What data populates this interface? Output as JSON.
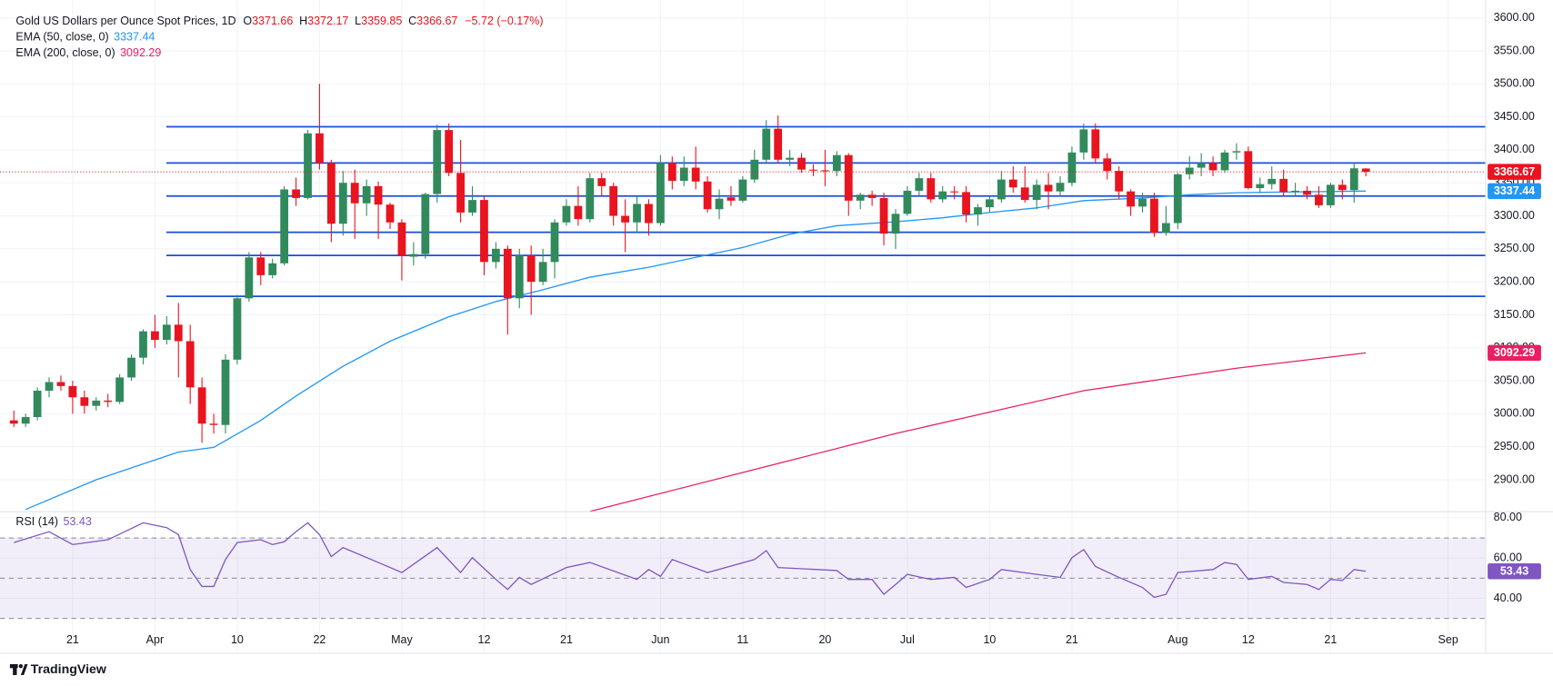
{
  "chart_data": [
    {
      "type": "candlestick",
      "title": "Gold US Dollars per Ounce Spot Prices, 1D",
      "ohlc_labels": [
        "O",
        "H",
        "L",
        "C"
      ],
      "change_text": "−5.72 (−0.17%)",
      "up_color": "#318a5c",
      "down_color": "#e8141f",
      "open": [
        2990,
        2985,
        2995,
        3035,
        3048,
        3042,
        3025,
        3012,
        3020,
        3018,
        3055,
        3085,
        3125,
        3112,
        3135,
        3110,
        3040,
        2985,
        2983,
        3082,
        3175,
        3237,
        3210,
        3228,
        3340,
        3327,
        3425,
        3380,
        3288,
        3350,
        3319,
        3345,
        3317,
        3290,
        3238,
        3242,
        3333,
        3430,
        3365,
        3305,
        3324,
        3230,
        3250,
        3175,
        3240,
        3200,
        3230,
        3290,
        3315,
        3295,
        3357,
        3345,
        3300,
        3290,
        3318,
        3289,
        3380,
        3353,
        3373,
        3352,
        3310,
        3328,
        3323,
        3355,
        3385,
        3432,
        3385,
        3388,
        3370,
        3369,
        3368,
        3392,
        3323,
        3332,
        3327,
        3273,
        3303,
        3338,
        3357,
        3325,
        3337,
        3336,
        3302,
        3313,
        3325,
        3355,
        3343,
        3324,
        3347,
        3337,
        3350,
        3396,
        3431,
        3387,
        3368,
        3337,
        3314,
        3326,
        3274,
        3289,
        3363,
        3373,
        3380,
        3369,
        3396,
        3398,
        3342,
        3348,
        3356,
        3336,
        3338,
        3332,
        3316,
        3347,
        3339,
        3371.66
      ],
      "high": [
        3005,
        3000,
        3040,
        3055,
        3058,
        3050,
        3035,
        3025,
        3030,
        3060,
        3090,
        3128,
        3150,
        3148,
        3168,
        3135,
        3055,
        3000,
        3090,
        3180,
        3245,
        3245,
        3235,
        3345,
        3358,
        3430,
        3500,
        3385,
        3368,
        3370,
        3355,
        3352,
        3320,
        3295,
        3260,
        3335,
        3438,
        3440,
        3415,
        3345,
        3330,
        3260,
        3255,
        3250,
        3255,
        3250,
        3295,
        3325,
        3345,
        3365,
        3365,
        3350,
        3325,
        3330,
        3325,
        3392,
        3390,
        3390,
        3405,
        3360,
        3340,
        3345,
        3360,
        3400,
        3445,
        3452,
        3400,
        3395,
        3378,
        3400,
        3398,
        3395,
        3335,
        3338,
        3335,
        3310,
        3345,
        3365,
        3365,
        3345,
        3345,
        3345,
        3318,
        3330,
        3368,
        3375,
        3375,
        3355,
        3365,
        3360,
        3405,
        3440,
        3440,
        3395,
        3375,
        3340,
        3335,
        3335,
        3315,
        3365,
        3390,
        3395,
        3390,
        3400,
        3410,
        3405,
        3358,
        3375,
        3370,
        3350,
        3345,
        3345,
        3350,
        3355,
        3380,
        3372.17
      ],
      "low": [
        2980,
        2980,
        2990,
        3025,
        3035,
        3000,
        3000,
        3005,
        3010,
        3015,
        3050,
        3075,
        3100,
        3105,
        3055,
        3015,
        2956,
        2970,
        2970,
        3075,
        3170,
        3195,
        3205,
        3225,
        3315,
        3325,
        3370,
        3260,
        3270,
        3265,
        3300,
        3265,
        3280,
        3202,
        3225,
        3235,
        3320,
        3360,
        3290,
        3300,
        3210,
        3220,
        3120,
        3160,
        3150,
        3195,
        3205,
        3285,
        3285,
        3290,
        3330,
        3285,
        3245,
        3275,
        3270,
        3285,
        3340,
        3345,
        3340,
        3305,
        3295,
        3315,
        3320,
        3350,
        3380,
        3380,
        3375,
        3365,
        3360,
        3345,
        3360,
        3300,
        3310,
        3315,
        3255,
        3250,
        3300,
        3330,
        3320,
        3320,
        3325,
        3290,
        3285,
        3305,
        3320,
        3335,
        3320,
        3310,
        3310,
        3330,
        3345,
        3385,
        3380,
        3355,
        3325,
        3300,
        3305,
        3268,
        3270,
        3280,
        3355,
        3360,
        3360,
        3365,
        3385,
        3340,
        3335,
        3340,
        3330,
        3330,
        3325,
        3312,
        3312,
        3325,
        3320,
        3359.85
      ],
      "close": [
        2985,
        2995,
        3035,
        3048,
        3042,
        3025,
        3012,
        3020,
        3018,
        3055,
        3085,
        3125,
        3112,
        3135,
        3110,
        3040,
        2985,
        2983,
        3082,
        3175,
        3237,
        3210,
        3228,
        3340,
        3327,
        3425,
        3380,
        3288,
        3350,
        3319,
        3345,
        3317,
        3290,
        3240,
        3242,
        3333,
        3430,
        3365,
        3305,
        3324,
        3230,
        3250,
        3175,
        3240,
        3200,
        3230,
        3290,
        3315,
        3295,
        3357,
        3345,
        3300,
        3290,
        3318,
        3289,
        3380,
        3353,
        3373,
        3352,
        3310,
        3326,
        3323,
        3355,
        3385,
        3432,
        3385,
        3388,
        3370,
        3369,
        3368,
        3392,
        3323,
        3332,
        3327,
        3273,
        3303,
        3338,
        3357,
        3325,
        3337,
        3336,
        3302,
        3313,
        3325,
        3355,
        3343,
        3324,
        3347,
        3337,
        3350,
        3396,
        3431,
        3387,
        3368,
        3337,
        3314,
        3326,
        3274,
        3289,
        3363,
        3373,
        3380,
        3369,
        3396,
        3398,
        3342,
        3348,
        3356,
        3336,
        3338,
        3332,
        3316,
        3347,
        3339,
        3372,
        3366.67
      ],
      "xlim": [
        -1.18,
        125.19
      ],
      "xticks": [
        {
          "value": 5,
          "label": "21"
        },
        {
          "value": 12,
          "label": "Apr"
        },
        {
          "value": 19,
          "label": "10"
        },
        {
          "value": 26,
          "label": "22"
        },
        {
          "value": 33,
          "label": "May"
        },
        {
          "value": 40,
          "label": "12"
        },
        {
          "value": 47,
          "label": "21"
        },
        {
          "value": 55,
          "label": "Jun"
        },
        {
          "value": 62,
          "label": "11"
        },
        {
          "value": 69,
          "label": "20"
        },
        {
          "value": 76,
          "label": "Jul"
        },
        {
          "value": 83,
          "label": "10"
        },
        {
          "value": 90,
          "label": "21"
        },
        {
          "value": 99,
          "label": "Aug"
        },
        {
          "value": 105,
          "label": "12"
        },
        {
          "value": 112,
          "label": "21"
        },
        {
          "value": 122,
          "label": "Sep"
        }
      ],
      "ylim": [
        2851.5,
        3615
      ],
      "yticks": [
        {
          "value": 2900,
          "label": "2900.00"
        },
        {
          "value": 2950,
          "label": "2950.00"
        },
        {
          "value": 3000,
          "label": "3000.00"
        },
        {
          "value": 3050,
          "label": "3050.00"
        },
        {
          "value": 3100,
          "label": "3100.00"
        },
        {
          "value": 3150,
          "label": "3150.00"
        },
        {
          "value": 3200,
          "label": "3200.00"
        },
        {
          "value": 3250,
          "label": "3250.00"
        },
        {
          "value": 3300,
          "label": "3300.00"
        },
        {
          "value": 3350,
          "label": "3350.00"
        },
        {
          "value": 3400,
          "label": "3400.00"
        },
        {
          "value": 3450,
          "label": "3450.00"
        },
        {
          "value": 3500,
          "label": "3500.00"
        },
        {
          "value": 3550,
          "label": "3550.00"
        },
        {
          "value": 3600,
          "label": "3600.00"
        }
      ],
      "grid": true,
      "overlays": [
        {
          "name": "EMA (50, close, 0)",
          "color": "#2196f3",
          "x": [
            1,
            7,
            14,
            17,
            21,
            24,
            28,
            32,
            37,
            41,
            45,
            49,
            54,
            58,
            62,
            66,
            70,
            75,
            79,
            83,
            87,
            91,
            96,
            100,
            104,
            108,
            115
          ],
          "values": [
            2855,
            2900,
            2942,
            2949,
            2990,
            3027,
            3072,
            3110,
            3147,
            3170,
            3188,
            3207,
            3222,
            3237,
            3252,
            3272,
            3285,
            3291,
            3297,
            3305,
            3312,
            3323,
            3327,
            3332,
            3335,
            3336,
            3337.44
          ]
        },
        {
          "name": "EMA (200, close, 0)",
          "color": "#e91e63",
          "x": [
            49,
            75,
            91,
            104,
            115
          ],
          "values": [
            2852,
            2970,
            3035,
            3069,
            3092.29
          ]
        }
      ],
      "hlines": {
        "color": "#1a4ed8",
        "values": [
          3435,
          3380,
          3330,
          3275,
          3240,
          3178
        ]
      }
    },
    {
      "type": "line",
      "series": [
        {
          "name": "RSI (14)",
          "color": "#7e57c2",
          "x": [
            0,
            3,
            5,
            8,
            11,
            13,
            14,
            15,
            16,
            17,
            18,
            19,
            21,
            22,
            23,
            24,
            25,
            26,
            27,
            28,
            31,
            33,
            36,
            38,
            39,
            41,
            42,
            43,
            44,
            47,
            49,
            53,
            54,
            55,
            56,
            59,
            63,
            64,
            65,
            70,
            71,
            73,
            74,
            75,
            76,
            78,
            80,
            81,
            83,
            84,
            87,
            89,
            90,
            91,
            92,
            94,
            96,
            97,
            98,
            99,
            102,
            103,
            104,
            105,
            107,
            108,
            110,
            111,
            112,
            113,
            114,
            115
          ],
          "values": [
            67.7,
            73.1,
            66.7,
            69.1,
            77.5,
            75.1,
            71.6,
            54.3,
            45.9,
            45.9,
            59.3,
            67.7,
            69.1,
            66.7,
            68.1,
            73.1,
            77.5,
            71.6,
            60.7,
            65.2,
            57.8,
            52.8,
            65.2,
            52.8,
            60.2,
            49.4,
            44.4,
            50.4,
            46.9,
            55.3,
            57.8,
            49.4,
            54.3,
            50.9,
            59.3,
            52.8,
            59.3,
            63.7,
            55.3,
            53.8,
            49.4,
            49.4,
            42.0,
            46.9,
            51.9,
            49.4,
            50.4,
            45.4,
            49.4,
            54.3,
            51.9,
            50.4,
            60.2,
            64.2,
            55.8,
            50.4,
            45.4,
            40.5,
            42.0,
            52.8,
            54.3,
            57.8,
            56.8,
            49.4,
            50.9,
            47.9,
            46.9,
            44.4,
            49.4,
            48.9,
            54.3,
            53.43
          ]
        }
      ],
      "xlim": [
        -1.18,
        125.19
      ],
      "ylim": [
        25,
        83
      ],
      "yticks": [
        {
          "value": 80,
          "label": "80.00"
        },
        {
          "value": 60,
          "label": "60.00"
        },
        {
          "value": 40,
          "label": "40.00"
        }
      ],
      "levels": [
        70,
        50,
        30
      ],
      "band_color": "#7e57c2"
    }
  ],
  "branding": "TradingView"
}
